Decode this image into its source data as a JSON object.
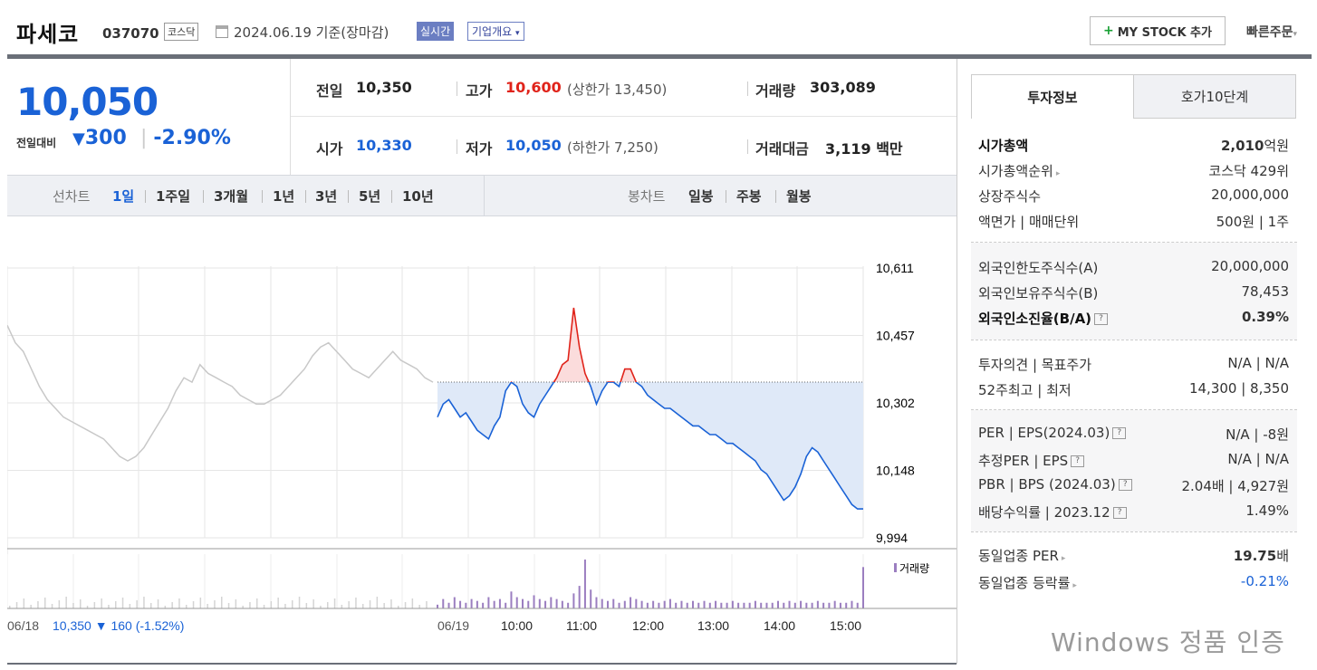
{
  "header": {
    "name": "파세코",
    "code": "037070",
    "market": "코스닥",
    "date": "2024.06.19",
    "date_suffix": " 기준(장마감)",
    "live_label": "실시간",
    "corp_label": "기업개요",
    "mystock_plus": "+",
    "mystock_label": "MY STOCK 추가",
    "quick_order": "빠른주문"
  },
  "price": {
    "current": "10,050",
    "compare_label": "전일대비",
    "change_arrow": "▼",
    "change": "300",
    "change_pct": "-2.90%"
  },
  "summary": {
    "prev_label": "전일",
    "prev": "10,350",
    "high_label": "고가",
    "high": "10,600",
    "upper_limit": "(상한가 13,450)",
    "volume_label": "거래량",
    "volume": "303,089",
    "open_label": "시가",
    "open": "10,330",
    "low_label": "저가",
    "low": "10,050",
    "lower_limit": "(하한가 7,250)",
    "value_label": "거래대금",
    "value": "3,119",
    "value_unit": "백만"
  },
  "tabs": {
    "line_label": "선차트",
    "line": [
      "1일",
      "1주일",
      "3개월",
      "1년",
      "3년",
      "5년",
      "10년"
    ],
    "candle_label": "봉차트",
    "candle": [
      "일봉",
      "주봉",
      "월봉"
    ]
  },
  "side": {
    "tab_active": "투자정보",
    "tab_other": "호가10단계",
    "rows1": [
      {
        "k": "시가총액",
        "v1": "2,010",
        "v2": "억원"
      },
      {
        "k": "시가총액순위",
        "v1": "코스닥 429위"
      },
      {
        "k": "상장주식수",
        "v1": "20,000,000"
      },
      {
        "k": "액면가 | 매매단위",
        "v1": "500원 | 1주"
      }
    ],
    "rows2": [
      {
        "k": "외국인한도주식수(A)",
        "v1": "20,000,000"
      },
      {
        "k": "외국인보유주식수(B)",
        "v1": "78,453"
      },
      {
        "k": "외국인소진율(B/A)",
        "v1": "0.39%"
      }
    ],
    "rows3": [
      {
        "k": "투자의견 | 목표주가",
        "v1": "N/A | N/A"
      },
      {
        "k": "52주최고 | 최저",
        "v1": "14,300 | 8,350"
      }
    ],
    "rows4": [
      {
        "k": "PER | EPS(2024.03)",
        "v1": "N/A | -8원"
      },
      {
        "k": "추정PER | EPS",
        "v1": "N/A | N/A"
      },
      {
        "k": "PBR | BPS (2024.03)",
        "v1": "2.04배 | 4,927원"
      },
      {
        "k": "배당수익률 | 2023.12",
        "v1": "1.49%"
      }
    ],
    "rows5": [
      {
        "k": "동일업종 PER",
        "v1": "19.75",
        "v2": "배"
      },
      {
        "k": "동일업종 등락률",
        "v1": "-0.21%"
      }
    ],
    "watermark": "Windows 정품 인증"
  },
  "chart_data": {
    "type": "line",
    "y_ticks": [
      "10,611",
      "10,457",
      "10,302",
      "10,148",
      "9,994"
    ],
    "ylim": [
      9994,
      10611
    ],
    "prev_close": 10350,
    "volume_label": "거래량",
    "prev_day": {
      "date": "06/18",
      "close": "10,350",
      "arrow": "▼",
      "change": "160",
      "pct": "(-1.52%)"
    },
    "x_ticks": [
      "06/19",
      "10:00",
      "11:00",
      "12:00",
      "13:00",
      "14:00",
      "15:00"
    ],
    "colors": {
      "up": "#e0231a",
      "down": "#1a62d6",
      "prev": "#c8c8c8",
      "fill_down": "#dfe9f8",
      "fill_up": "#fbdcdc",
      "volume": "#9b7ec0"
    },
    "prev_series": [
      10480,
      10440,
      10420,
      10380,
      10340,
      10310,
      10290,
      10270,
      10260,
      10250,
      10240,
      10230,
      10220,
      10200,
      10180,
      10170,
      10180,
      10200,
      10230,
      10260,
      10290,
      10330,
      10360,
      10350,
      10390,
      10370,
      10360,
      10350,
      10340,
      10320,
      10310,
      10300,
      10300,
      10310,
      10320,
      10340,
      10360,
      10380,
      10410,
      10430,
      10440,
      10420,
      10400,
      10380,
      10370,
      10360,
      10380,
      10400,
      10420,
      10400,
      10390,
      10380,
      10360,
      10350
    ],
    "today_series": [
      10270,
      10300,
      10310,
      10290,
      10270,
      10280,
      10260,
      10240,
      10230,
      10220,
      10250,
      10270,
      10330,
      10350,
      10340,
      10300,
      10280,
      10270,
      10300,
      10320,
      10340,
      10360,
      10390,
      10400,
      10520,
      10430,
      10370,
      10340,
      10300,
      10330,
      10350,
      10350,
      10340,
      10380,
      10380,
      10350,
      10340,
      10320,
      10310,
      10300,
      10290,
      10290,
      10280,
      10270,
      10260,
      10250,
      10250,
      10240,
      10230,
      10230,
      10220,
      10210,
      10210,
      10200,
      10190,
      10180,
      10170,
      10150,
      10140,
      10120,
      10100,
      10080,
      10090,
      10110,
      10140,
      10180,
      10200,
      10190,
      10170,
      10150,
      10130,
      10110,
      10090,
      10070,
      10060,
      10060
    ],
    "volume_series": [
      2,
      5,
      3,
      6,
      4,
      3,
      5,
      4,
      3,
      6,
      4,
      5,
      3,
      9,
      6,
      5,
      4,
      7,
      5,
      4,
      6,
      5,
      4,
      3,
      8,
      12,
      26,
      10,
      6,
      5,
      4,
      5,
      3,
      4,
      6,
      5,
      4,
      3,
      4,
      3,
      4,
      5,
      3,
      4,
      3,
      4,
      3,
      4,
      3,
      4,
      3,
      3,
      4,
      3,
      3,
      3,
      4,
      3,
      3,
      3,
      4,
      3,
      4,
      3,
      4,
      3,
      3,
      4,
      3,
      3,
      4,
      3,
      3,
      4,
      3,
      22
    ]
  }
}
